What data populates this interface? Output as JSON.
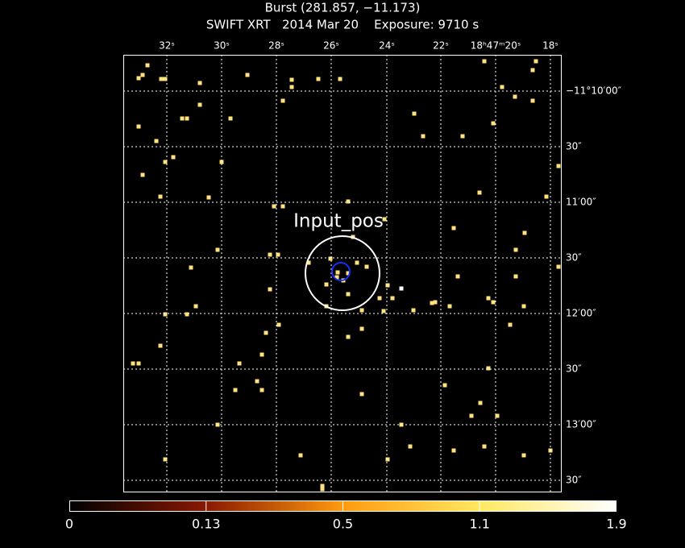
{
  "header": {
    "title": "Burst (281.857, −11.173)",
    "subtitle": "SWIFT XRT   2014 Mar 20    Exposure: 9710 s"
  },
  "top_axis_labels": [
    "32ˢ",
    "30ˢ",
    "28ˢ",
    "26ˢ",
    "24ˢ",
    "22ˢ",
    "18ʰ47ᵐ20ˢ",
    "18ˢ"
  ],
  "right_axis_labels": [
    "−11°10′00″",
    "30″",
    "11′00″",
    "30″",
    "12′00″",
    "30″",
    "13′00″",
    "30″"
  ],
  "annotation": "Input_pos",
  "colorbar_labels": [
    0,
    0.13,
    0.5,
    1.1,
    1.9
  ]
}
